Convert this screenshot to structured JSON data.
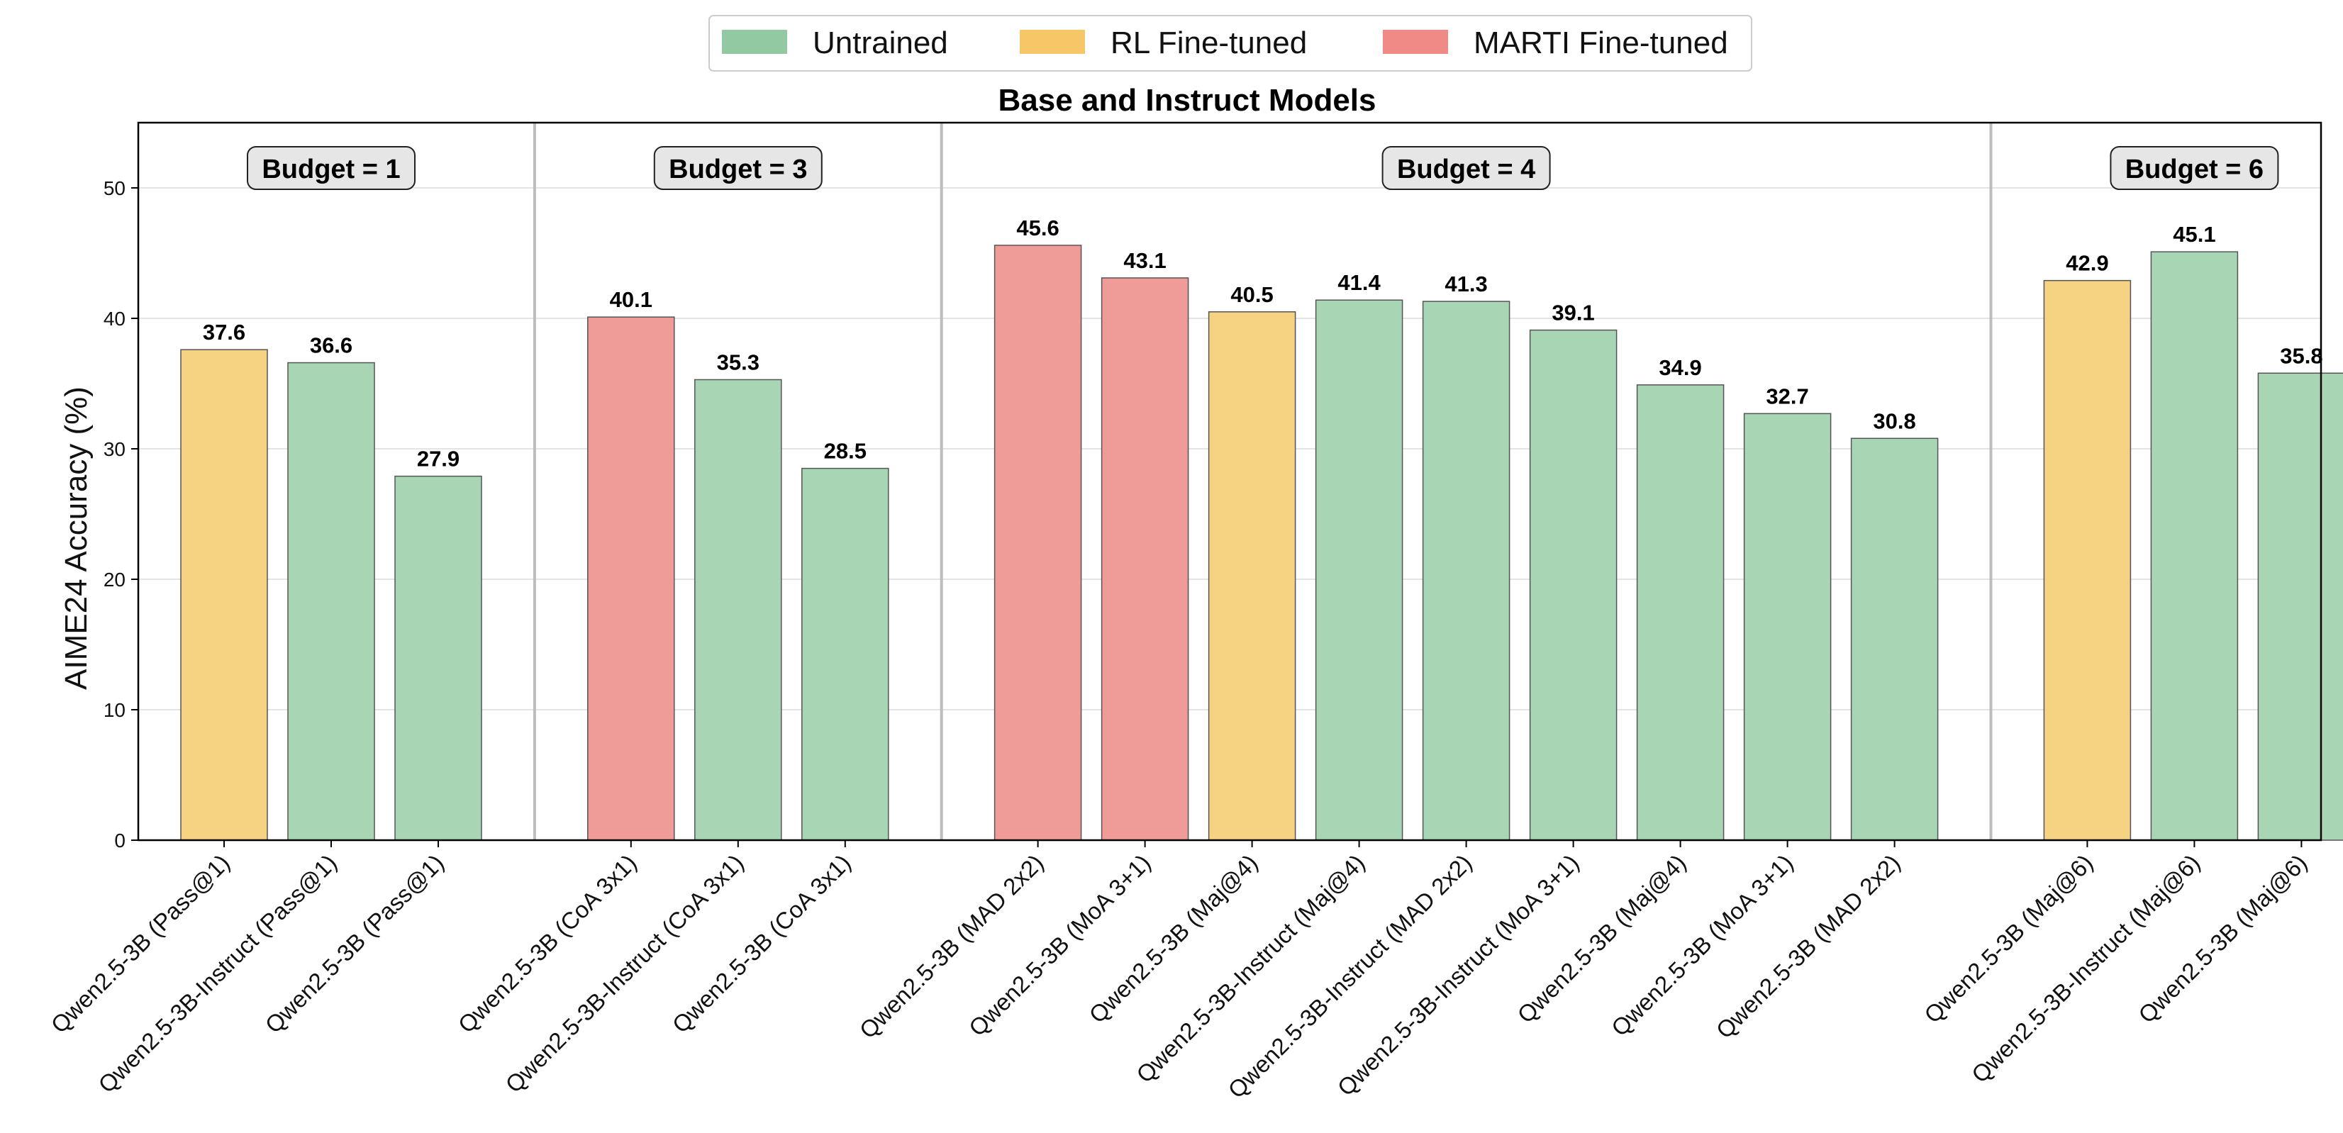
{
  "chart_data": {
    "type": "bar",
    "title": "Base and Instruct Models",
    "ylabel": "AIME24 Accuracy (%)",
    "xlabel": "",
    "ylim": [
      0,
      55
    ],
    "yticks": [
      0,
      10,
      20,
      30,
      40,
      50
    ],
    "grid": true,
    "legend_placement": "top-center",
    "legend": [
      {
        "key": "untrained",
        "label": "Untrained",
        "color": "#92c9a2"
      },
      {
        "key": "rl",
        "label": "RL Fine-tuned",
        "color": "#f6c767"
      },
      {
        "key": "marti",
        "label": "MARTI Fine-tuned",
        "color": "#ef8a86"
      }
    ],
    "bar_colors": {
      "untrained": "#a8d5b4",
      "rl": "#f6d283",
      "marti": "#ef9b98"
    },
    "groups": [
      {
        "label": "Budget = 1",
        "bars": [
          {
            "category": "Qwen2.5-3B (Pass@1)",
            "value": 37.6,
            "type": "rl"
          },
          {
            "category": "Qwen2.5-3B-Instruct (Pass@1)",
            "value": 36.6,
            "type": "untrained"
          },
          {
            "category": "Qwen2.5-3B (Pass@1)",
            "value": 27.9,
            "type": "untrained"
          }
        ]
      },
      {
        "label": "Budget = 3",
        "bars": [
          {
            "category": "Qwen2.5-3B (CoA 3x1)",
            "value": 40.1,
            "type": "marti"
          },
          {
            "category": "Qwen2.5-3B-Instruct (CoA 3x1)",
            "value": 35.3,
            "type": "untrained"
          },
          {
            "category": "Qwen2.5-3B (CoA 3x1)",
            "value": 28.5,
            "type": "untrained"
          }
        ]
      },
      {
        "label": "Budget = 4",
        "bars": [
          {
            "category": "Qwen2.5-3B (MAD 2x2)",
            "value": 45.6,
            "type": "marti"
          },
          {
            "category": "Qwen2.5-3B (MoA 3+1)",
            "value": 43.1,
            "type": "marti"
          },
          {
            "category": "Qwen2.5-3B (Maj@4)",
            "value": 40.5,
            "type": "rl"
          },
          {
            "category": "Qwen2.5-3B-Instruct (Maj@4)",
            "value": 41.4,
            "type": "untrained"
          },
          {
            "category": "Qwen2.5-3B-Instruct (MAD 2x2)",
            "value": 41.3,
            "type": "untrained"
          },
          {
            "category": "Qwen2.5-3B-Instruct (MoA 3+1)",
            "value": 39.1,
            "type": "untrained"
          },
          {
            "category": "Qwen2.5-3B (Maj@4)",
            "value": 34.9,
            "type": "untrained"
          },
          {
            "category": "Qwen2.5-3B (MoA 3+1)",
            "value": 32.7,
            "type": "untrained"
          },
          {
            "category": "Qwen2.5-3B (MAD 2x2)",
            "value": 30.8,
            "type": "untrained"
          }
        ]
      },
      {
        "label": "Budget = 6",
        "bars": [
          {
            "category": "Qwen2.5-3B (Maj@6)",
            "value": 42.9,
            "type": "rl"
          },
          {
            "category": "Qwen2.5-3B-Instruct (Maj@6)",
            "value": 45.1,
            "type": "untrained"
          },
          {
            "category": "Qwen2.5-3B (Maj@6)",
            "value": 35.8,
            "type": "untrained"
          }
        ]
      }
    ]
  }
}
